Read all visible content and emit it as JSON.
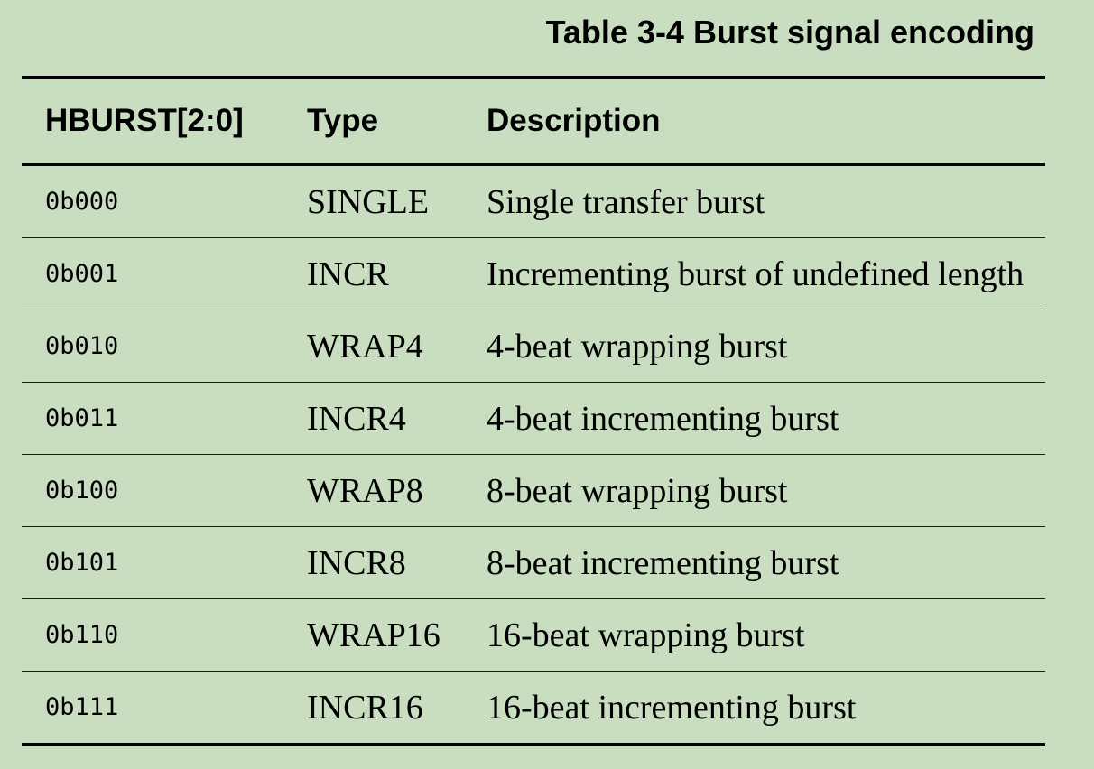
{
  "caption": "Table 3-4 Burst signal encoding",
  "table": {
    "headers": {
      "hburst": "HBURST[2:0]",
      "type": "Type",
      "description": "Description"
    },
    "rows": [
      {
        "hburst": "0b000",
        "type": "SINGLE",
        "description": "Single transfer burst"
      },
      {
        "hburst": "0b001",
        "type": "INCR",
        "description": "Incrementing burst of undefined length"
      },
      {
        "hburst": "0b010",
        "type": "WRAP4",
        "description": "4-beat wrapping burst"
      },
      {
        "hburst": "0b011",
        "type": "INCR4",
        "description": "4-beat incrementing burst"
      },
      {
        "hburst": "0b100",
        "type": "WRAP8",
        "description": "8-beat wrapping burst"
      },
      {
        "hburst": "0b101",
        "type": "INCR8",
        "description": "8-beat incrementing burst"
      },
      {
        "hburst": "0b110",
        "type": "WRAP16",
        "description": "16-beat wrapping burst"
      },
      {
        "hburst": "0b111",
        "type": "INCR16",
        "description": "16-beat incrementing burst"
      }
    ]
  },
  "colors": {
    "background": "#c9dec1",
    "text": "#000000",
    "rule": "#000000"
  }
}
